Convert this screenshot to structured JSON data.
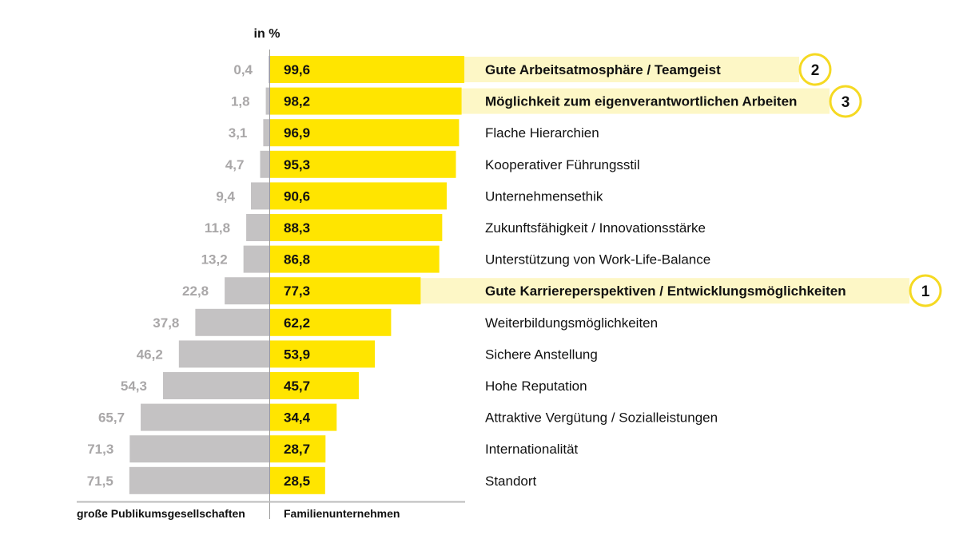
{
  "chart_data": {
    "type": "bar",
    "orientation": "horizontal-butterfly",
    "unit_label": "in %",
    "categories": [
      "Gute Arbeitsatmosphäre / Teamgeist",
      "Möglichkeit zum eigenverantwortlichen Arbeiten",
      "Flache Hierarchien",
      "Kooperativer Führungsstil",
      "Unternehmensethik",
      "Zukunftsfähigkeit / Innovationsstärke",
      "Unterstützung von Work-Life-Balance",
      "Gute Karriereperspektiven / Entwicklungsmöglichkeiten",
      "Weiterbildungsmöglichkeiten",
      "Sichere Anstellung",
      "Hohe Reputation",
      "Attraktive Vergütung / Sozialleistungen",
      "Internationalität",
      "Standort"
    ],
    "series": [
      {
        "name": "große Publikumsgesellschaften",
        "side": "left",
        "color": "#c4c2c3",
        "values": [
          0.4,
          1.8,
          3.1,
          4.7,
          9.4,
          11.8,
          13.2,
          22.8,
          37.8,
          46.2,
          54.3,
          65.7,
          71.3,
          71.5
        ],
        "labels": [
          "0,4",
          "1,8",
          "3,1",
          "4,7",
          "9,4",
          "11,8",
          "13,2",
          "22,8",
          "37,8",
          "46,2",
          "54,3",
          "65,7",
          "71,3",
          "71,5"
        ]
      },
      {
        "name": "Familienunternehmen",
        "side": "right",
        "color": "#ffe500",
        "values": [
          99.6,
          98.2,
          96.9,
          95.3,
          90.6,
          88.3,
          86.8,
          77.3,
          62.2,
          53.9,
          45.7,
          34.4,
          28.7,
          28.5
        ],
        "labels": [
          "99,6",
          "98,2",
          "96,9",
          "95,3",
          "90,6",
          "88,3",
          "86,8",
          "77,3",
          "62,2",
          "53,9",
          "45,7",
          "34,4",
          "28,7",
          "28,5"
        ]
      }
    ],
    "highlights": [
      {
        "category_index": 0,
        "rank": "2"
      },
      {
        "category_index": 1,
        "rank": "3"
      },
      {
        "category_index": 7,
        "rank": "1"
      }
    ],
    "xlim": [
      0,
      100
    ],
    "grid": false,
    "colors": {
      "highlight_band": "#fdf7c6",
      "rank_circle": "#f5d922",
      "left_label": "#a9a7a8"
    }
  }
}
